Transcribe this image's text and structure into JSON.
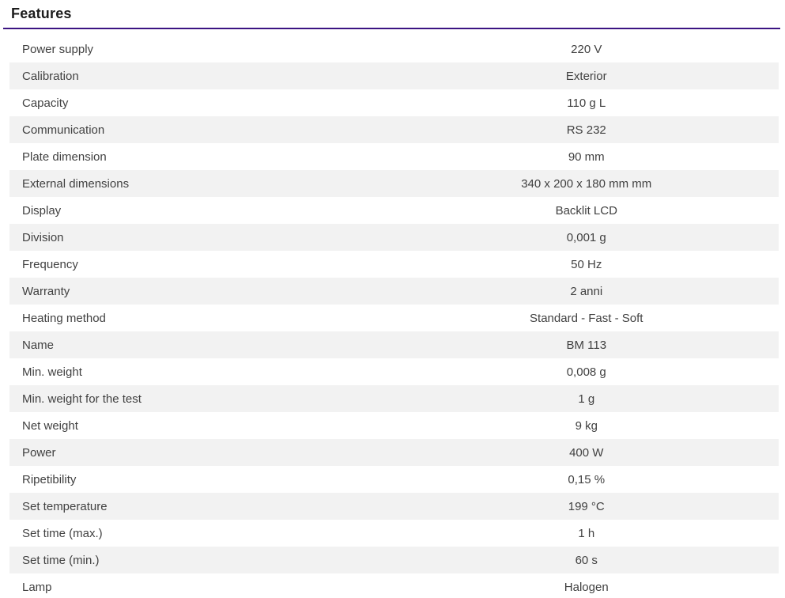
{
  "section": {
    "title": "Features",
    "accent_color": "#3c1482",
    "alt_row_color": "#f2f2f2",
    "text_color": "#414141"
  },
  "features": {
    "rows": [
      {
        "label": "Power supply",
        "value": "220 V"
      },
      {
        "label": "Calibration",
        "value": "Exterior"
      },
      {
        "label": "Capacity",
        "value": "110 g L"
      },
      {
        "label": "Communication",
        "value": "RS 232"
      },
      {
        "label": "Plate dimension",
        "value": "90 mm"
      },
      {
        "label": "External dimensions",
        "value": "340 x 200 x 180 mm mm"
      },
      {
        "label": "Display",
        "value": "Backlit LCD"
      },
      {
        "label": "Division",
        "value": "0,001 g"
      },
      {
        "label": "Frequency",
        "value": "50 Hz"
      },
      {
        "label": "Warranty",
        "value": "2 anni"
      },
      {
        "label": "Heating method",
        "value": "Standard - Fast - Soft"
      },
      {
        "label": "Name",
        "value": "BM 113"
      },
      {
        "label": "Min. weight",
        "value": "0,008 g"
      },
      {
        "label": "Min. weight for the test",
        "value": "1 g"
      },
      {
        "label": "Net weight",
        "value": "9 kg"
      },
      {
        "label": "Power",
        "value": "400 W"
      },
      {
        "label": "Ripetibility",
        "value": "0,15 %"
      },
      {
        "label": "Set temperature",
        "value": "199 °C"
      },
      {
        "label": "Set time (max.)",
        "value": "1 h"
      },
      {
        "label": "Set time (min.)",
        "value": "60 s"
      },
      {
        "label": "Lamp",
        "value": "Halogen"
      }
    ]
  }
}
